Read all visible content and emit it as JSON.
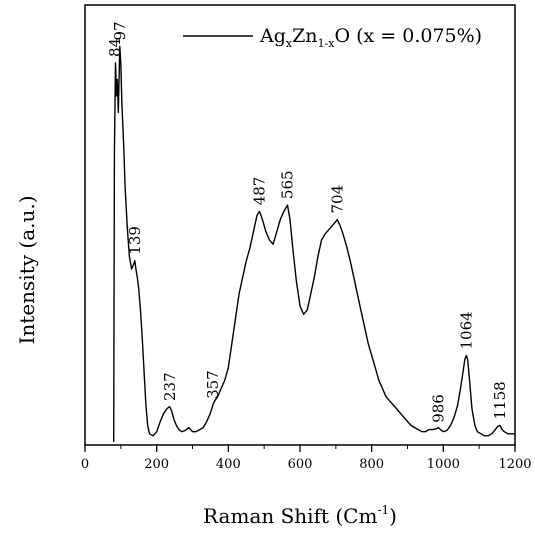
{
  "chart_data": {
    "type": "line",
    "xlabel": "Raman Shift (Cm",
    "xlabel_sup": "-1",
    "xlabel_close": ")",
    "ylabel": "Intensity (a.u.)",
    "xlim": [
      0,
      1200
    ],
    "ylim": [
      0,
      100
    ],
    "xticks": [
      "0",
      "200",
      "400",
      "600",
      "800",
      "1000",
      "1200"
    ],
    "xtick_values": [
      0,
      200,
      400,
      600,
      800,
      1000,
      1200
    ],
    "grid": false,
    "legend": {
      "position": "top-right",
      "parts": [
        {
          "text": "Ag",
          "role": "base"
        },
        {
          "text": "x",
          "role": "sub"
        },
        {
          "text": "Zn",
          "role": "base"
        },
        {
          "text": "1-x",
          "role": "sub"
        },
        {
          "text": "O (x = 0.075%)",
          "role": "base"
        }
      ],
      "line_color": "#000000"
    },
    "series": [
      {
        "color": "#000000",
        "x": [
          80,
          82,
          85,
          88,
          90,
          93,
          97,
          100,
          103,
          108,
          112,
          118,
          124,
          130,
          135,
          139,
          142,
          146,
          150,
          155,
          160,
          165,
          170,
          175,
          180,
          190,
          200,
          210,
          220,
          228,
          234,
          237,
          242,
          248,
          255,
          262,
          270,
          280,
          290,
          300,
          310,
          320,
          330,
          340,
          350,
          357,
          362,
          370,
          380,
          390,
          400,
          410,
          420,
          430,
          440,
          450,
          460,
          470,
          480,
          487,
          495,
          505,
          515,
          525,
          535,
          545,
          555,
          565,
          572,
          580,
          590,
          600,
          610,
          620,
          630,
          640,
          650,
          660,
          670,
          680,
          690,
          700,
          704,
          712,
          720,
          730,
          740,
          750,
          760,
          770,
          780,
          790,
          800,
          810,
          820,
          830,
          840,
          850,
          860,
          870,
          880,
          890,
          900,
          910,
          920,
          930,
          940,
          950,
          960,
          970,
          980,
          986,
          992,
          1000,
          1010,
          1020,
          1030,
          1040,
          1048,
          1055,
          1060,
          1064,
          1068,
          1074,
          1080,
          1088,
          1095,
          1105,
          1115,
          1125,
          1135,
          1145,
          1152,
          1158,
          1164,
          1170,
          1180,
          1190,
          1200
        ],
        "y": [
          0,
          70,
          92,
          84,
          88,
          80,
          96,
          92,
          82,
          72,
          62,
          52,
          45,
          42,
          43,
          44,
          42,
          40,
          37,
          32,
          25,
          17,
          9,
          4,
          2,
          1.5,
          2.5,
          5,
          7,
          8,
          8.5,
          8.5,
          7.5,
          5.5,
          4,
          3,
          2.5,
          2.8,
          3.5,
          2.5,
          2.5,
          3,
          3.5,
          5,
          7,
          9,
          10,
          11,
          13,
          15,
          18,
          24,
          30,
          36,
          40,
          44,
          47,
          51,
          55,
          56,
          54,
          51,
          49,
          48,
          51,
          54,
          56,
          57.5,
          54,
          47,
          39,
          33,
          31,
          32,
          36,
          40,
          45,
          49,
          50.5,
          51.5,
          52.5,
          53.5,
          54,
          52.5,
          50.5,
          47.5,
          44,
          40,
          36,
          32,
          28,
          24,
          21,
          18,
          15,
          13,
          11,
          10,
          9,
          8,
          7,
          6,
          5,
          4,
          3.5,
          3,
          2.5,
          2.5,
          3,
          3,
          3.2,
          3.5,
          3,
          2.5,
          2.8,
          4,
          6,
          9,
          13,
          17,
          20,
          21,
          20,
          14,
          8,
          4,
          2.5,
          2,
          1.5,
          1.5,
          2,
          3,
          3.8,
          4,
          3,
          2.5,
          2,
          2,
          2
        ]
      }
    ],
    "peak_labels": [
      {
        "text": "84",
        "x": 84,
        "y": 92
      },
      {
        "text": "97",
        "x": 97,
        "y": 96
      },
      {
        "text": "139",
        "x": 139,
        "y": 44
      },
      {
        "text": "237",
        "x": 237,
        "y": 8.5
      },
      {
        "text": "357",
        "x": 357,
        "y": 9
      },
      {
        "text": "487",
        "x": 487,
        "y": 56
      },
      {
        "text": "565",
        "x": 565,
        "y": 57.5
      },
      {
        "text": "704",
        "x": 704,
        "y": 54
      },
      {
        "text": "986",
        "x": 986,
        "y": 3.2
      },
      {
        "text": "1064",
        "x": 1064,
        "y": 21
      },
      {
        "text": "1158",
        "x": 1158,
        "y": 4
      }
    ]
  }
}
